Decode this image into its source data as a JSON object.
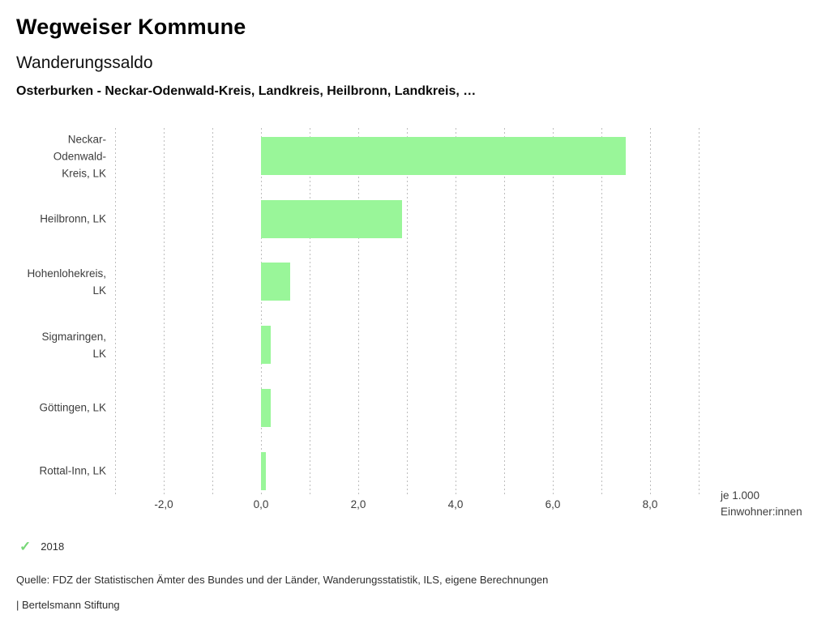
{
  "header": {
    "app_title": "Wegweiser Kommune",
    "chart_title": "Wanderungssaldo",
    "context_line": "Osterburken - Neckar-Odenwald-Kreis, Landkreis, Heilbronn, Landkreis, …"
  },
  "legend": {
    "year": "2018",
    "check_icon": "✓",
    "check_color": "#77d877"
  },
  "footer": {
    "source": "Quelle: FDZ der Statistischen Ämter des Bundes und der Länder, Wanderungsstatistik, ILS, eigene Berechnungen",
    "brand": "| Bertelsmann Stiftung"
  },
  "chart_data": {
    "type": "bar",
    "orientation": "horizontal",
    "title": "Wanderungssaldo",
    "subtitle": "Osterburken - Neckar-Odenwald-Kreis, Landkreis, Heilbronn, Landkreis, …",
    "unit_label": "je 1.000\nEinwohner:innen",
    "categories": [
      "Neckar-Odenwald-Kreis, LK",
      "Heilbronn, LK",
      "Hohenlohekreis, LK",
      "Sigmaringen, LK",
      "Göttingen, LK",
      "Rottal-Inn, LK"
    ],
    "category_display": [
      "Neckar-\nOdenwald-\nKreis, LK",
      "Heilbronn, LK",
      "Hohenlohekreis,\nLK",
      "Sigmaringen,\nLK",
      "Göttingen, LK",
      "Rottal-Inn, LK"
    ],
    "series": [
      {
        "name": "2018",
        "values": [
          7.5,
          2.9,
          0.6,
          0.2,
          0.2,
          0.1
        ]
      }
    ],
    "bar_color": "#99f699",
    "xlim": [
      -3,
      9
    ],
    "grid_step": 1,
    "grid": true,
    "tick_values": [
      -2,
      0,
      2,
      4,
      6,
      8
    ],
    "tick_labels": [
      "-2,0",
      "0,0",
      "2,0",
      "4,0",
      "6,0",
      "8,0"
    ],
    "legend_position": "bottom-left"
  }
}
